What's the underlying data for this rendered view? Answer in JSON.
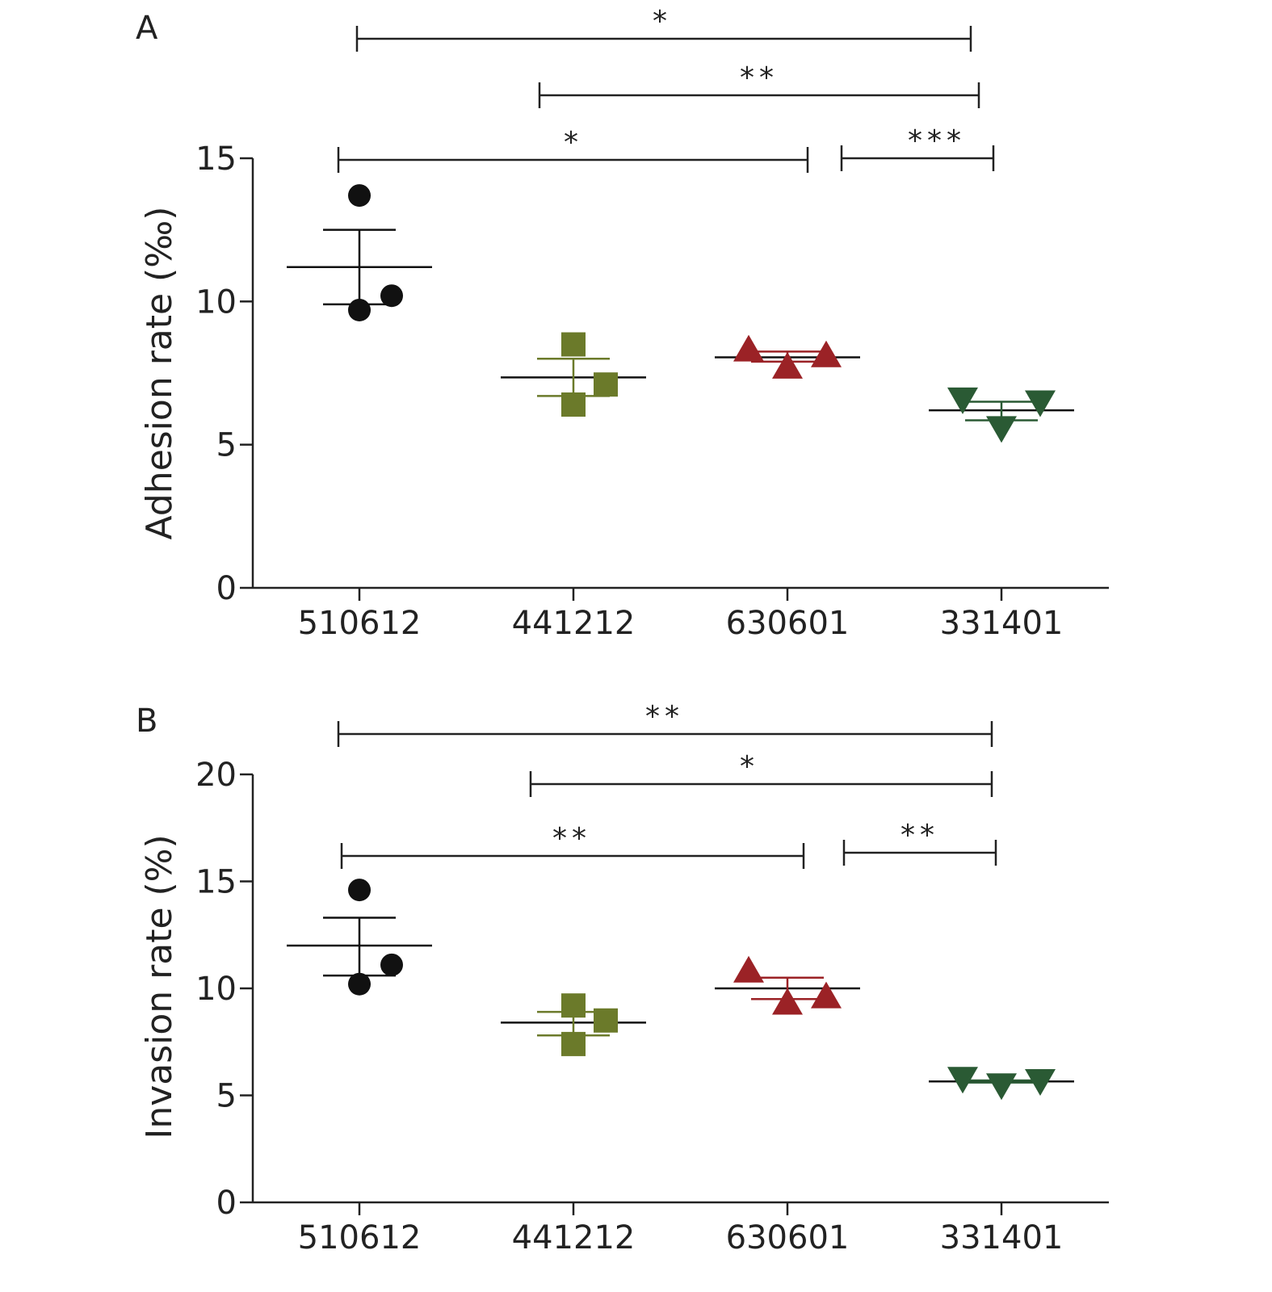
{
  "chart_data": [
    {
      "panel": "A",
      "type": "scatter",
      "ylabel": "Adhesion rate (‰)",
      "ylim": [
        0,
        15
      ],
      "yticks": [
        0,
        5,
        10,
        15
      ],
      "categories": [
        "510612",
        "441212",
        "630601",
        "331401"
      ],
      "groups": [
        {
          "category": "510612",
          "color": "#111111",
          "marker": "circle",
          "points": [
            13.7,
            10.2,
            9.7
          ],
          "mean": 11.2,
          "sem_low": 9.9,
          "sem_high": 12.5
        },
        {
          "category": "441212",
          "color": "#6b7a2a",
          "marker": "square",
          "points": [
            8.5,
            7.1,
            6.4
          ],
          "mean": 7.35,
          "sem_low": 6.7,
          "sem_high": 8.0
        },
        {
          "category": "630601",
          "color": "#9b2226",
          "marker": "triangle-up",
          "points": [
            8.3,
            7.7,
            8.1
          ],
          "mean": 8.05,
          "sem_low": 7.9,
          "sem_high": 8.25
        },
        {
          "category": "331401",
          "color": "#2a5a34",
          "marker": "triangle-down",
          "points": [
            6.6,
            5.6,
            6.5
          ],
          "mean": 6.2,
          "sem_low": 5.85,
          "sem_high": 6.5
        }
      ],
      "significance": [
        {
          "from": "510612",
          "to": "331401",
          "label": "*"
        },
        {
          "from": "441212",
          "to": "331401",
          "label": "**"
        },
        {
          "from": "510612",
          "to": "630601",
          "label": "*"
        },
        {
          "from": "630601",
          "to": "331401",
          "label": "***"
        }
      ]
    },
    {
      "panel": "B",
      "type": "scatter",
      "ylabel": "Invasion rate (%)",
      "ylim": [
        0,
        20
      ],
      "yticks": [
        0,
        5,
        10,
        15,
        20
      ],
      "categories": [
        "510612",
        "441212",
        "630601",
        "331401"
      ],
      "groups": [
        {
          "category": "510612",
          "color": "#111111",
          "marker": "circle",
          "points": [
            14.6,
            11.1,
            10.2
          ],
          "mean": 12.0,
          "sem_low": 10.6,
          "sem_high": 13.3
        },
        {
          "category": "441212",
          "color": "#6b7a2a",
          "marker": "square",
          "points": [
            9.2,
            8.5,
            7.4
          ],
          "mean": 8.4,
          "sem_low": 7.8,
          "sem_high": 8.9
        },
        {
          "category": "630601",
          "color": "#9b2226",
          "marker": "triangle-up",
          "points": [
            10.8,
            9.3,
            9.6
          ],
          "mean": 10.0,
          "sem_low": 9.5,
          "sem_high": 10.5
        },
        {
          "category": "331401",
          "color": "#2a5a34",
          "marker": "triangle-down",
          "points": [
            5.8,
            5.5,
            5.7
          ],
          "mean": 5.65,
          "sem_low": 5.6,
          "sem_high": 5.7
        }
      ],
      "significance": [
        {
          "from": "510612",
          "to": "331401",
          "label": "**"
        },
        {
          "from": "441212",
          "to": "331401",
          "label": "*"
        },
        {
          "from": "510612",
          "to": "630601",
          "label": "**"
        },
        {
          "from": "630601",
          "to": "331401",
          "label": "**"
        }
      ]
    }
  ]
}
